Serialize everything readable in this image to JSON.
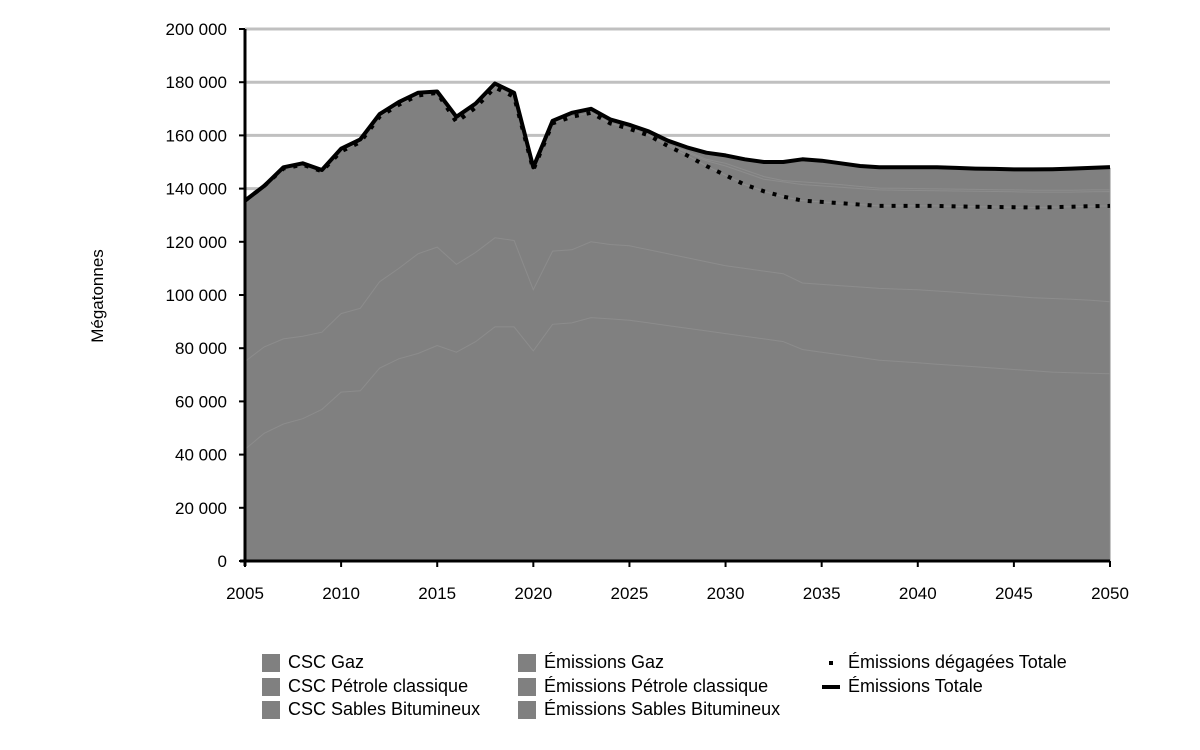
{
  "chart_data": {
    "type": "area",
    "title": "",
    "xlabel": "",
    "ylabel": "Mégatonnes",
    "xlim": [
      2005,
      2050
    ],
    "ylim": [
      0,
      200000
    ],
    "x_ticks": [
      "2005",
      "2010",
      "2015",
      "2020",
      "2025",
      "2030",
      "2035",
      "2040",
      "2045",
      "2050"
    ],
    "y_ticks": [
      "0",
      "20 000",
      "40 000",
      "60 000",
      "80 000",
      "100 000",
      "120 000",
      "140 000",
      "160 000",
      "180 000",
      "200 000"
    ],
    "grid": "horizontal",
    "legend_position": "bottom",
    "x": [
      2005,
      2006,
      2007,
      2008,
      2009,
      2010,
      2011,
      2012,
      2013,
      2014,
      2015,
      2016,
      2017,
      2018,
      2019,
      2020,
      2021,
      2022,
      2023,
      2024,
      2025,
      2026,
      2027,
      2028,
      2029,
      2030,
      2031,
      2032,
      2033,
      2034,
      2035,
      2036,
      2037,
      2038,
      2039,
      2040,
      2041,
      2042,
      2043,
      2044,
      2045,
      2046,
      2047,
      2048,
      2049,
      2050
    ],
    "stack_tops": {
      "Émissions Gaz": [
        42000,
        48000,
        51500,
        53500,
        57000,
        63500,
        64000,
        72500,
        76000,
        78000,
        81000,
        78500,
        82500,
        88000,
        88000,
        79000,
        89000,
        89500,
        91500,
        91000,
        90500,
        89500,
        88500,
        87500,
        86500,
        85500,
        84500,
        83500,
        82500,
        79500,
        78500,
        77500,
        76500,
        75500,
        75000,
        74500,
        74000,
        73500,
        73000,
        72500,
        72000,
        71500,
        71000,
        70800,
        70600,
        70400
      ],
      "Émissions Pétrole classique": [
        75000,
        80500,
        83500,
        84500,
        86000,
        93000,
        95000,
        105000,
        110000,
        115500,
        118000,
        111500,
        116000,
        121500,
        120500,
        102000,
        116500,
        117000,
        120000,
        119000,
        118500,
        117000,
        115500,
        114000,
        112500,
        111000,
        110000,
        109000,
        108000,
        104500,
        104000,
        103500,
        103000,
        102500,
        102200,
        102000,
        101500,
        101000,
        100500,
        100000,
        99500,
        99000,
        98700,
        98400,
        98000,
        97500
      ],
      "Émissions Sables Bitumineux": [
        135500,
        141000,
        147500,
        149000,
        146500,
        154000,
        157500,
        167000,
        171500,
        175000,
        176000,
        165000,
        170500,
        178000,
        174500,
        147000,
        164500,
        167000,
        168500,
        164500,
        162500,
        160000,
        156000,
        152500,
        148500,
        145000,
        141500,
        139000,
        137000,
        135500,
        135000,
        134500,
        134000,
        133500,
        133500,
        133500,
        133500,
        133300,
        133200,
        133100,
        133000,
        132900,
        133000,
        133200,
        133400,
        133500
      ],
      "CSC Gaz": [
        135500,
        141000,
        147500,
        149000,
        146500,
        154000,
        157500,
        167000,
        171500,
        175000,
        176000,
        165000,
        170500,
        178000,
        174500,
        147000,
        164500,
        167000,
        168500,
        164500,
        162500,
        160000,
        156500,
        153500,
        150500,
        148500,
        146000,
        143500,
        142500,
        141500,
        141000,
        140500,
        140000,
        139500,
        139400,
        139300,
        139200,
        139100,
        139000,
        138900,
        138800,
        138700,
        138700,
        138700,
        138800,
        138900
      ],
      "CSC Pétrole classique": [
        135500,
        141000,
        147500,
        149000,
        146500,
        154000,
        157500,
        167000,
        171500,
        175000,
        176000,
        165000,
        170500,
        178000,
        174500,
        147000,
        164500,
        167000,
        168500,
        164500,
        162500,
        160000,
        156500,
        154000,
        151000,
        149500,
        147000,
        144500,
        143000,
        142500,
        142000,
        141500,
        140800,
        140200,
        140100,
        140000,
        139900,
        139800,
        139700,
        139600,
        139500,
        139400,
        139400,
        139400,
        139500,
        139600
      ],
      "CSC Sables Bitumineux": [
        135500,
        141000,
        147500,
        149000,
        146500,
        154500,
        158000,
        167500,
        172000,
        175500,
        176500,
        166500,
        171500,
        179000,
        175500,
        147500,
        165500,
        168000,
        169500,
        165500,
        163500,
        161500,
        158000,
        155500,
        153500,
        152000,
        150500,
        149500,
        149500,
        150500,
        150000,
        149000,
        148000,
        147500,
        147400,
        147500,
        147400,
        147200,
        147000,
        146900,
        146700,
        146700,
        146800,
        147000,
        147300,
        147600
      ]
    },
    "series": [
      {
        "name": "Émissions dégagées Totale",
        "style": "dotted",
        "values": [
          135500,
          141000,
          147500,
          149000,
          146500,
          154000,
          157500,
          167000,
          171500,
          175000,
          176000,
          165000,
          170500,
          178000,
          174500,
          147000,
          164500,
          167000,
          168500,
          164500,
          162500,
          160000,
          156000,
          152500,
          148500,
          145000,
          141500,
          139000,
          137000,
          135500,
          135000,
          134500,
          134000,
          133500,
          133500,
          133500,
          133500,
          133300,
          133200,
          133100,
          133000,
          132900,
          133000,
          133200,
          133400,
          133500
        ]
      },
      {
        "name": "Émissions Totale",
        "style": "solid",
        "values": [
          135500,
          141000,
          148000,
          149500,
          147000,
          155000,
          158500,
          168000,
          172500,
          176000,
          176500,
          167000,
          172000,
          179500,
          176000,
          148000,
          165500,
          168500,
          170000,
          166000,
          164000,
          161500,
          158000,
          155500,
          153500,
          152500,
          151000,
          150000,
          150000,
          151000,
          150500,
          149500,
          148500,
          148000,
          148000,
          148000,
          148000,
          147800,
          147500,
          147400,
          147200,
          147200,
          147300,
          147500,
          147800,
          148100
        ]
      }
    ],
    "colors": {
      "area": "#808080",
      "area_boundary": "#8c8c8c",
      "grid": "#c0c0c0",
      "axis": "#000000"
    }
  },
  "legend": [
    {
      "label": "CSC Gaz",
      "marker": "square",
      "color": "#808080"
    },
    {
      "label": "CSC Pétrole classique",
      "marker": "square",
      "color": "#808080"
    },
    {
      "label": "CSC Sables Bitumineux",
      "marker": "square",
      "color": "#808080"
    },
    {
      "label": "Émissions Gaz",
      "marker": "square",
      "color": "#808080"
    },
    {
      "label": "Émissions Pétrole classique",
      "marker": "square",
      "color": "#808080"
    },
    {
      "label": "Émissions Sables Bitumineux",
      "marker": "square",
      "color": "#808080"
    },
    {
      "label": "Émissions dégagées Totale",
      "marker": "dotted-line",
      "color": "#000000"
    },
    {
      "label": "Émissions Totale",
      "marker": "solid-line",
      "color": "#000000"
    }
  ]
}
